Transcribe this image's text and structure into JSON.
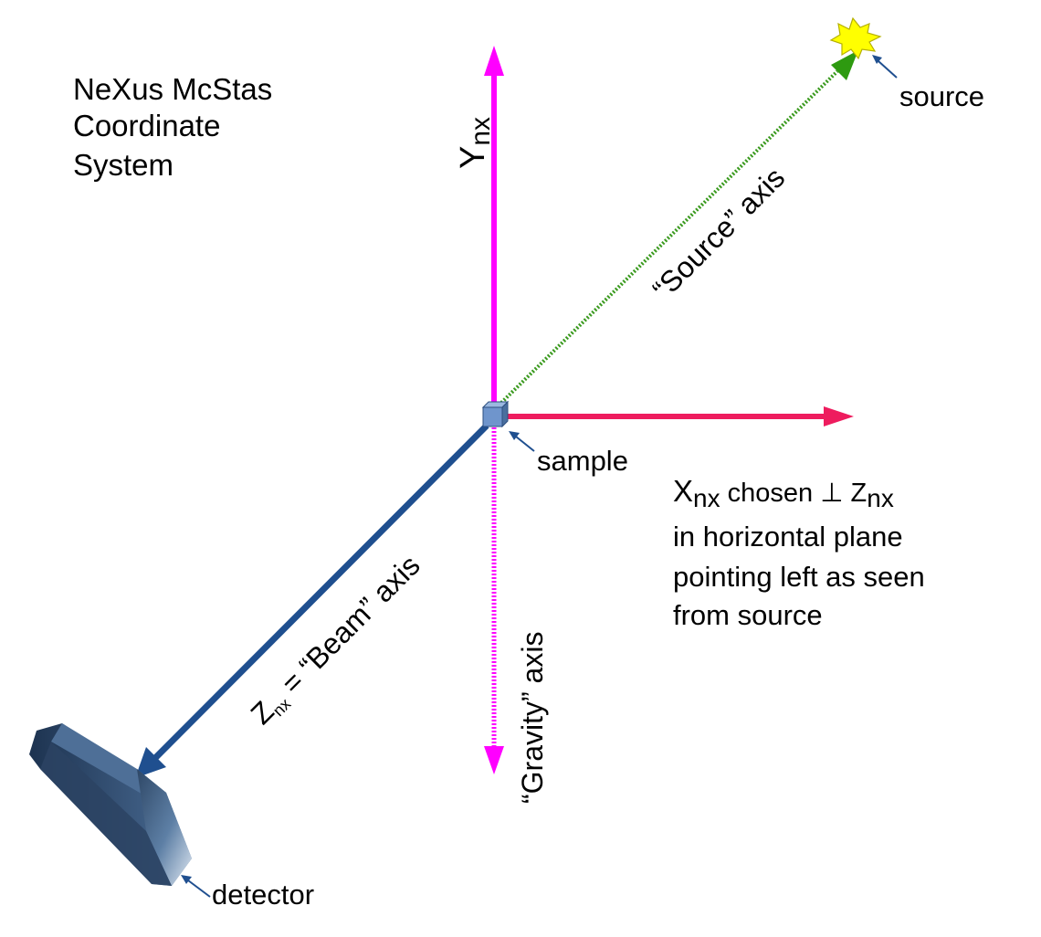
{
  "title": [
    "NeXus McStas",
    "Coordinate",
    "System"
  ],
  "axes": {
    "y": {
      "label": "Y",
      "subscript": "nx",
      "color": "#ff00ff"
    },
    "x": {
      "color": "#ee1c5e"
    },
    "source": {
      "label": "“Source” axis",
      "color": "#3a9a1e"
    },
    "gravity": {
      "label": "“Gravity” axis",
      "color": "#ff00ff"
    },
    "beam": {
      "label_main": "Z",
      "subscript": "nx",
      "label_rest": " = “Beam” axis",
      "color": "#1f4f8f"
    }
  },
  "labels": {
    "source": "source",
    "sample": "sample",
    "detector": "detector"
  },
  "x_note": {
    "line1_x": "X",
    "line1_x_sub": "nx",
    "line1_mid": " chosen ⊥ Z",
    "line1_z_sub": "nx",
    "line2": "in horizontal plane",
    "line3": "pointing left as seen",
    "line4": "from source"
  },
  "colors": {
    "pointer": "#1f4f8f",
    "source_burst": "#ffff00",
    "sample_box": "#6f95cc",
    "detector": "#4a6a8e"
  }
}
